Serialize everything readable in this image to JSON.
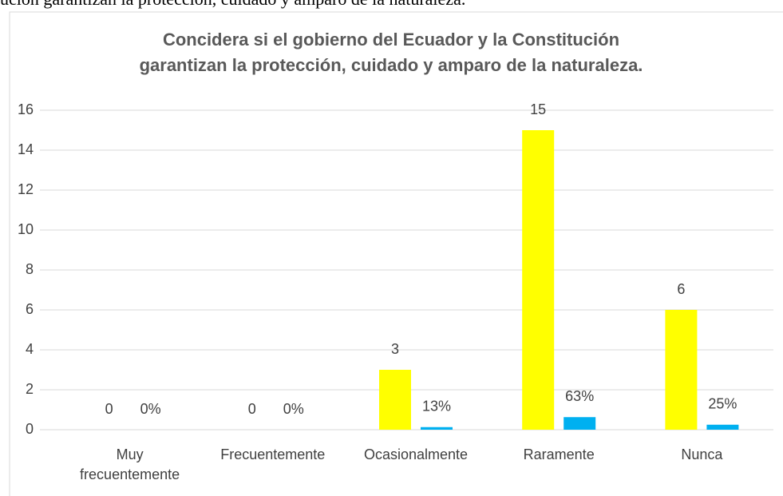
{
  "caption_fragment": "ución garantizan la protección, cuidado y amparo de la naturaleza.",
  "chart_data": {
    "type": "bar",
    "title": "Concidera si el gobierno del Ecuador y la Constitución\ngarantizan la protección, cuidado y amparo de la naturaleza.",
    "categories": [
      "Muy\nfrecuentemente",
      "Frecuentemente",
      "Ocasionalmente",
      "Raramente",
      "Nunca"
    ],
    "series": [
      {
        "color": "#ffff00",
        "values": [
          0,
          0,
          3,
          15,
          6
        ]
      },
      {
        "color": "#00b0f0",
        "values": [
          0,
          0,
          0.13,
          0.63,
          0.25
        ],
        "value_labels": [
          "0%",
          "0%",
          "13%",
          "63%",
          "25%"
        ]
      }
    ],
    "ylim": [
      0,
      16
    ],
    "yticks": [
      0,
      2,
      4,
      6,
      8,
      10,
      12,
      14,
      16
    ],
    "grid": true
  }
}
